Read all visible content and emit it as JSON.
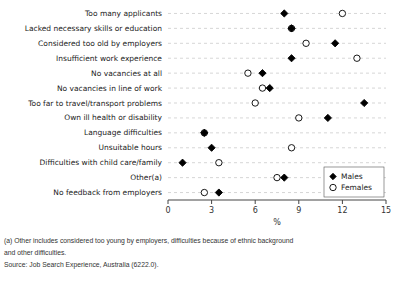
{
  "chart_data": {
    "type": "dot",
    "orientation": "horizontal",
    "categories": [
      "Too many applicants",
      "Lacked necessary skills or education",
      "Considered too old by employers",
      "Insufficient work experience",
      "No vacancies at all",
      "No vacancies in line of work",
      "Too far to travel/transport problems",
      "Own ill health or disability",
      "Language difficulties",
      "Unsuitable hours",
      "Difficulties with child care/family",
      "Other(a)",
      "No feedback from employers"
    ],
    "series": [
      {
        "name": "Males",
        "color": "#000000",
        "marker": "diamond",
        "values": [
          8.0,
          8.5,
          11.5,
          8.5,
          6.5,
          7.0,
          13.5,
          11.0,
          2.5,
          3.0,
          1.0,
          8.0,
          3.5
        ]
      },
      {
        "name": "Females",
        "color": "#ffffff",
        "marker": "circle",
        "values": [
          12.0,
          8.5,
          9.5,
          13.0,
          5.5,
          6.5,
          6.0,
          9.0,
          2.5,
          8.5,
          3.5,
          7.5,
          2.5
        ]
      }
    ],
    "x_label": "%",
    "xlim": [
      0,
      15
    ],
    "xticks": [
      0,
      3,
      6,
      9,
      12,
      15
    ],
    "grid": false,
    "legend": "lower right",
    "annotations": [
      "(a) Other includes considered too young by employers, difficulties because of ethnic background",
      "and other difficulties.",
      "Source: Job Search Experience, Australia (6222.0)."
    ]
  }
}
